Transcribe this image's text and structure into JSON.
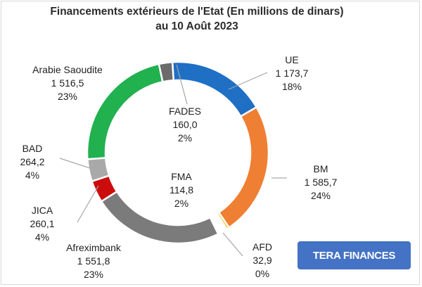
{
  "title": {
    "line1": "Financements extérieurs de l'Etat (En millions de dinars)",
    "line2": "au 10 Août 2023"
  },
  "badge": {
    "label": "TERA FINANCES"
  },
  "chart_data": {
    "type": "pie",
    "title": "Financements extérieurs de l'Etat (En millions de dinars) au 10 Août 2023",
    "slices": [
      {
        "name": "UE",
        "value": 1173.7,
        "value_label": "1 173,7",
        "percent_label": "18%",
        "color": "#1f6fc5"
      },
      {
        "name": "BM",
        "value": 1585.7,
        "value_label": "1 585,7",
        "percent_label": "24%",
        "color": "#ef7f33"
      },
      {
        "name": "AFD",
        "value": 32.9,
        "value_label": "32,9",
        "percent_label": "0%",
        "color": "#f8c21f"
      },
      {
        "name": "FMA",
        "value": 114.8,
        "value_label": "114,8",
        "percent_label": "2%",
        "color": "#ffffff"
      },
      {
        "name": "Afreximbank",
        "value": 1551.8,
        "value_label": "1 551,8",
        "percent_label": "23%",
        "color": "#7b7b7b"
      },
      {
        "name": "JICA",
        "value": 260.1,
        "value_label": "260,1",
        "percent_label": "4%",
        "color": "#cc0c0c"
      },
      {
        "name": "BAD",
        "value": 264.2,
        "value_label": "264,2",
        "percent_label": "4%",
        "color": "#a9a9a9"
      },
      {
        "name": "Arabie Saoudite",
        "value": 1516.5,
        "value_label": "1 516,5",
        "percent_label": "23%",
        "color": "#21b14f"
      },
      {
        "name": "FADES",
        "value": 160.0,
        "value_label": "160,0",
        "percent_label": "2%",
        "color": "#6b6b6b"
      }
    ]
  }
}
